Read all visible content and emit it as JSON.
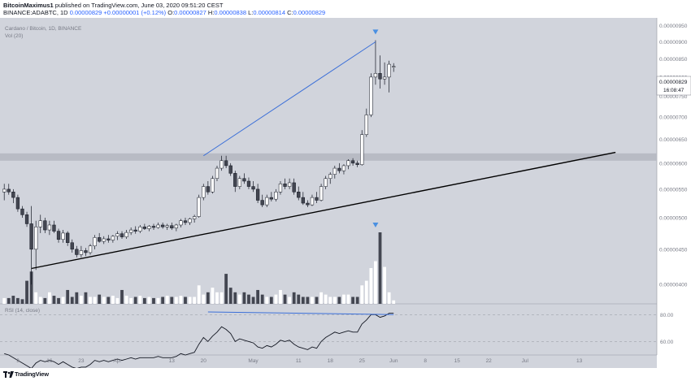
{
  "header": {
    "author": "BitcoinMaximus1",
    "published": "published on TradingView.com, June 03, 2020 09:51:20 CEST",
    "symbol_line": "BINANCE:ADABTC, 1D",
    "last_price": "0.00000829",
    "change": "+0.00000001 (+0.12%)",
    "ohlc": [
      {
        "label": "O:",
        "value": "0.00000827"
      },
      {
        "label": "H:",
        "value": "0.00000838"
      },
      {
        "label": "L:",
        "value": "0.00000814"
      },
      {
        "label": "C:",
        "value": "0.00000829"
      }
    ]
  },
  "legend": {
    "title": "Cardano / Bitcoin, 1D, BINANCE",
    "volume": "Vol (20)",
    "rsi": "RSI (14, close)"
  },
  "price_badge": {
    "price": "0.00000829",
    "countdown": "16:08:47"
  },
  "footer": {
    "brand": "TradingView"
  },
  "colors": {
    "background": "#d1d4dc",
    "bull": "#ffffff",
    "bear": "#434651",
    "trend_blue": "#3b6fd8",
    "marker_blue": "#4a90e2",
    "support_line": "#000000",
    "resistance_band": "#b8bbc4",
    "axis_text": "#787b86"
  },
  "chart_data": {
    "type": "candlestick",
    "symbol": "BINANCE:ADABTC",
    "interval": "1D",
    "y_axis": {
      "scale": "log",
      "ylim": [
        3.75e-06,
        9.75e-06
      ],
      "ticks": [
        "0.00000950",
        "0.00000900",
        "0.00000850",
        "0.00000800",
        "0.00000750",
        "0.00000700",
        "0.00000650",
        "0.00000600",
        "0.00000550",
        "0.00000500",
        "0.00000450",
        "0.00000400"
      ]
    },
    "x_axis": {
      "ticks": [
        {
          "label": "9",
          "bar": 3
        },
        {
          "label": "16",
          "bar": 10
        },
        {
          "label": "23",
          "bar": 17
        },
        {
          "label": "Apr",
          "bar": 25
        },
        {
          "label": "13",
          "bar": 37
        },
        {
          "label": "20",
          "bar": 44
        },
        {
          "label": "May",
          "bar": 55
        },
        {
          "label": "11",
          "bar": 65
        },
        {
          "label": "18",
          "bar": 72
        },
        {
          "label": "25",
          "bar": 79
        },
        {
          "label": "Jun",
          "bar": 86
        },
        {
          "label": "8",
          "bar": 93
        },
        {
          "label": "15",
          "bar": 100
        },
        {
          "label": "22",
          "bar": 107
        },
        {
          "label": "Jul",
          "bar": 115
        },
        {
          "label": "13",
          "bar": 127
        }
      ]
    },
    "candles": [
      {
        "o": 5.45,
        "h": 5.6,
        "l": 5.3,
        "c": 5.5
      },
      {
        "o": 5.5,
        "h": 5.6,
        "l": 5.4,
        "c": 5.45
      },
      {
        "o": 5.45,
        "h": 5.5,
        "l": 5.25,
        "c": 5.35
      },
      {
        "o": 5.35,
        "h": 5.4,
        "l": 5.1,
        "c": 5.15
      },
      {
        "o": 5.15,
        "h": 5.2,
        "l": 5.0,
        "c": 5.05
      },
      {
        "o": 5.05,
        "h": 5.1,
        "l": 4.85,
        "c": 4.9
      },
      {
        "o": 4.9,
        "h": 5.2,
        "l": 4.0,
        "c": 4.5
      },
      {
        "o": 4.5,
        "h": 4.95,
        "l": 4.2,
        "c": 4.85
      },
      {
        "o": 4.85,
        "h": 5.05,
        "l": 4.75,
        "c": 4.95
      },
      {
        "o": 4.95,
        "h": 5.0,
        "l": 4.75,
        "c": 4.8
      },
      {
        "o": 4.8,
        "h": 4.95,
        "l": 4.72,
        "c": 4.88
      },
      {
        "o": 4.88,
        "h": 4.95,
        "l": 4.75,
        "c": 4.78
      },
      {
        "o": 4.78,
        "h": 4.82,
        "l": 4.6,
        "c": 4.65
      },
      {
        "o": 4.65,
        "h": 4.8,
        "l": 4.6,
        "c": 4.75
      },
      {
        "o": 4.75,
        "h": 4.78,
        "l": 4.55,
        "c": 4.6
      },
      {
        "o": 4.6,
        "h": 4.65,
        "l": 4.45,
        "c": 4.5
      },
      {
        "o": 4.5,
        "h": 4.55,
        "l": 4.38,
        "c": 4.42
      },
      {
        "o": 4.42,
        "h": 4.55,
        "l": 4.38,
        "c": 4.48
      },
      {
        "o": 4.48,
        "h": 4.52,
        "l": 4.4,
        "c": 4.45
      },
      {
        "o": 4.45,
        "h": 4.58,
        "l": 4.42,
        "c": 4.55
      },
      {
        "o": 4.55,
        "h": 4.72,
        "l": 4.5,
        "c": 4.68
      },
      {
        "o": 4.68,
        "h": 4.75,
        "l": 4.6,
        "c": 4.62
      },
      {
        "o": 4.62,
        "h": 4.7,
        "l": 4.58,
        "c": 4.66
      },
      {
        "o": 4.66,
        "h": 4.72,
        "l": 4.6,
        "c": 4.64
      },
      {
        "o": 4.64,
        "h": 4.72,
        "l": 4.6,
        "c": 4.7
      },
      {
        "o": 4.7,
        "h": 4.78,
        "l": 4.64,
        "c": 4.74
      },
      {
        "o": 4.74,
        "h": 4.78,
        "l": 4.66,
        "c": 4.69
      },
      {
        "o": 4.69,
        "h": 4.8,
        "l": 4.66,
        "c": 4.76
      },
      {
        "o": 4.76,
        "h": 4.84,
        "l": 4.72,
        "c": 4.8
      },
      {
        "o": 4.8,
        "h": 4.86,
        "l": 4.74,
        "c": 4.78
      },
      {
        "o": 4.78,
        "h": 4.88,
        "l": 4.75,
        "c": 4.85
      },
      {
        "o": 4.85,
        "h": 4.9,
        "l": 4.8,
        "c": 4.82
      },
      {
        "o": 4.82,
        "h": 4.88,
        "l": 4.78,
        "c": 4.86
      },
      {
        "o": 4.86,
        "h": 4.9,
        "l": 4.8,
        "c": 4.84
      },
      {
        "o": 4.84,
        "h": 4.92,
        "l": 4.82,
        "c": 4.88
      },
      {
        "o": 4.88,
        "h": 4.92,
        "l": 4.82,
        "c": 4.85
      },
      {
        "o": 4.85,
        "h": 4.9,
        "l": 4.8,
        "c": 4.87
      },
      {
        "o": 4.87,
        "h": 4.92,
        "l": 4.8,
        "c": 4.83
      },
      {
        "o": 4.83,
        "h": 4.9,
        "l": 4.78,
        "c": 4.88
      },
      {
        "o": 4.88,
        "h": 4.98,
        "l": 4.84,
        "c": 4.95
      },
      {
        "o": 4.95,
        "h": 5.0,
        "l": 4.88,
        "c": 4.92
      },
      {
        "o": 4.92,
        "h": 5.0,
        "l": 4.88,
        "c": 4.98
      },
      {
        "o": 4.98,
        "h": 5.05,
        "l": 4.92,
        "c": 5.02
      },
      {
        "o": 5.02,
        "h": 5.4,
        "l": 5.0,
        "c": 5.35
      },
      {
        "o": 5.35,
        "h": 5.6,
        "l": 5.3,
        "c": 5.55
      },
      {
        "o": 5.55,
        "h": 5.65,
        "l": 5.4,
        "c": 5.45
      },
      {
        "o": 5.45,
        "h": 5.75,
        "l": 5.42,
        "c": 5.7
      },
      {
        "o": 5.7,
        "h": 5.95,
        "l": 5.65,
        "c": 5.9
      },
      {
        "o": 5.9,
        "h": 6.15,
        "l": 5.85,
        "c": 6.05
      },
      {
        "o": 6.05,
        "h": 6.15,
        "l": 5.9,
        "c": 5.95
      },
      {
        "o": 5.95,
        "h": 6.0,
        "l": 5.75,
        "c": 5.8
      },
      {
        "o": 5.8,
        "h": 5.85,
        "l": 5.45,
        "c": 5.55
      },
      {
        "o": 5.55,
        "h": 5.75,
        "l": 5.5,
        "c": 5.7
      },
      {
        "o": 5.7,
        "h": 5.8,
        "l": 5.6,
        "c": 5.65
      },
      {
        "o": 5.65,
        "h": 5.72,
        "l": 5.5,
        "c": 5.55
      },
      {
        "o": 5.55,
        "h": 5.65,
        "l": 5.45,
        "c": 5.5
      },
      {
        "o": 5.5,
        "h": 5.6,
        "l": 5.25,
        "c": 5.3
      },
      {
        "o": 5.3,
        "h": 5.4,
        "l": 5.18,
        "c": 5.22
      },
      {
        "o": 5.22,
        "h": 5.4,
        "l": 5.18,
        "c": 5.35
      },
      {
        "o": 5.35,
        "h": 5.45,
        "l": 5.28,
        "c": 5.32
      },
      {
        "o": 5.32,
        "h": 5.5,
        "l": 5.28,
        "c": 5.45
      },
      {
        "o": 5.45,
        "h": 5.65,
        "l": 5.4,
        "c": 5.6
      },
      {
        "o": 5.6,
        "h": 5.7,
        "l": 5.5,
        "c": 5.55
      },
      {
        "o": 5.55,
        "h": 5.7,
        "l": 5.5,
        "c": 5.62
      },
      {
        "o": 5.62,
        "h": 5.7,
        "l": 5.4,
        "c": 5.45
      },
      {
        "o": 5.45,
        "h": 5.55,
        "l": 5.3,
        "c": 5.35
      },
      {
        "o": 5.35,
        "h": 5.45,
        "l": 5.22,
        "c": 5.25
      },
      {
        "o": 5.25,
        "h": 5.3,
        "l": 5.18,
        "c": 5.22
      },
      {
        "o": 5.22,
        "h": 5.4,
        "l": 5.2,
        "c": 5.35
      },
      {
        "o": 5.35,
        "h": 5.45,
        "l": 5.25,
        "c": 5.3
      },
      {
        "o": 5.3,
        "h": 5.6,
        "l": 5.28,
        "c": 5.55
      },
      {
        "o": 5.55,
        "h": 5.75,
        "l": 5.5,
        "c": 5.7
      },
      {
        "o": 5.7,
        "h": 5.82,
        "l": 5.6,
        "c": 5.78
      },
      {
        "o": 5.78,
        "h": 5.95,
        "l": 5.7,
        "c": 5.9
      },
      {
        "o": 5.9,
        "h": 6.0,
        "l": 5.8,
        "c": 5.85
      },
      {
        "o": 5.85,
        "h": 5.98,
        "l": 5.78,
        "c": 5.95
      },
      {
        "o": 5.95,
        "h": 6.08,
        "l": 5.88,
        "c": 6.05
      },
      {
        "o": 6.05,
        "h": 6.1,
        "l": 5.95,
        "c": 6.0
      },
      {
        "o": 6.0,
        "h": 6.05,
        "l": 5.92,
        "c": 5.97
      },
      {
        "o": 5.97,
        "h": 6.7,
        "l": 5.95,
        "c": 6.6
      },
      {
        "o": 6.6,
        "h": 7.2,
        "l": 6.55,
        "c": 7.05
      },
      {
        "o": 7.05,
        "h": 8.1,
        "l": 7.0,
        "c": 8.0
      },
      {
        "o": 8.0,
        "h": 9.05,
        "l": 7.8,
        "c": 8.1
      },
      {
        "o": 8.1,
        "h": 8.6,
        "l": 7.7,
        "c": 7.95
      },
      {
        "o": 7.95,
        "h": 8.4,
        "l": 7.8,
        "c": 8.0
      },
      {
        "o": 8.0,
        "h": 8.45,
        "l": 7.6,
        "c": 8.35
      },
      {
        "o": 8.27,
        "h": 8.38,
        "l": 8.14,
        "c": 8.29
      }
    ],
    "volume": [
      0.5,
      0.5,
      0.7,
      0.5,
      0.4,
      2.0,
      2.8,
      1.0,
      0.6,
      0.5,
      1.0,
      0.7,
      0.5,
      0.6,
      1.2,
      0.6,
      1.0,
      0.7,
      1.0,
      0.6,
      0.6,
      0.8,
      0.6,
      0.6,
      0.7,
      0.5,
      1.2,
      0.7,
      0.5,
      0.6,
      0.7,
      0.5,
      0.6,
      0.5,
      0.5,
      0.6,
      0.7,
      0.6,
      0.6,
      0.7,
      0.6,
      0.6,
      0.6,
      1.6,
      0.8,
      1.0,
      1.4,
      1.0,
      1.0,
      2.6,
      1.4,
      1.0,
      0.8,
      1.0,
      0.8,
      0.6,
      1.2,
      0.8,
      0.6,
      0.6,
      0.8,
      1.2,
      0.8,
      0.6,
      1.0,
      0.8,
      0.6,
      0.6,
      0.6,
      0.6,
      1.0,
      0.8,
      0.6,
      0.6,
      0.6,
      0.8,
      0.8,
      0.6,
      0.6,
      1.6,
      2.0,
      3.1,
      3.7,
      6.2,
      3.2,
      1.0,
      0.3
    ],
    "rsi": {
      "levels": [
        80,
        60
      ],
      "values": [
        51,
        50,
        48,
        46,
        44,
        42,
        40,
        44,
        46,
        45,
        46,
        45,
        43,
        45,
        43,
        41,
        40,
        41,
        41,
        43,
        46,
        45,
        46,
        45,
        46,
        47,
        46,
        47,
        48,
        47,
        48,
        48,
        48,
        48,
        49,
        48,
        48,
        48,
        49,
        51,
        50,
        51,
        52,
        58,
        63,
        60,
        64,
        67,
        71,
        69,
        66,
        60,
        62,
        61,
        60,
        59,
        56,
        55,
        57,
        56,
        58,
        61,
        60,
        61,
        58,
        56,
        55,
        54,
        56,
        55,
        60,
        63,
        65,
        67,
        66,
        67,
        68,
        67,
        67,
        73,
        76,
        80,
        80,
        78,
        79,
        81,
        81
      ]
    },
    "annotations": {
      "resistance_band": [
        6.05e-06,
        6.2e-06
      ],
      "support_line": [
        {
          "bar": 6,
          "price": 4.22e-06
        },
        {
          "bar": 135,
          "price": 6.22e-06
        }
      ],
      "trend_line": [
        {
          "bar": 44,
          "price": 6.15e-06
        },
        {
          "bar": 82,
          "price": 9e-06
        }
      ],
      "rsi_trend_line": [
        {
          "bar": 45,
          "rsi": 82
        },
        {
          "bar": 86,
          "rsi": 80
        }
      ],
      "price_markers": [
        {
          "bar": 82,
          "price": 9.3e-06
        }
      ],
      "volume_markers": [
        {
          "bar": 82
        }
      ]
    }
  }
}
